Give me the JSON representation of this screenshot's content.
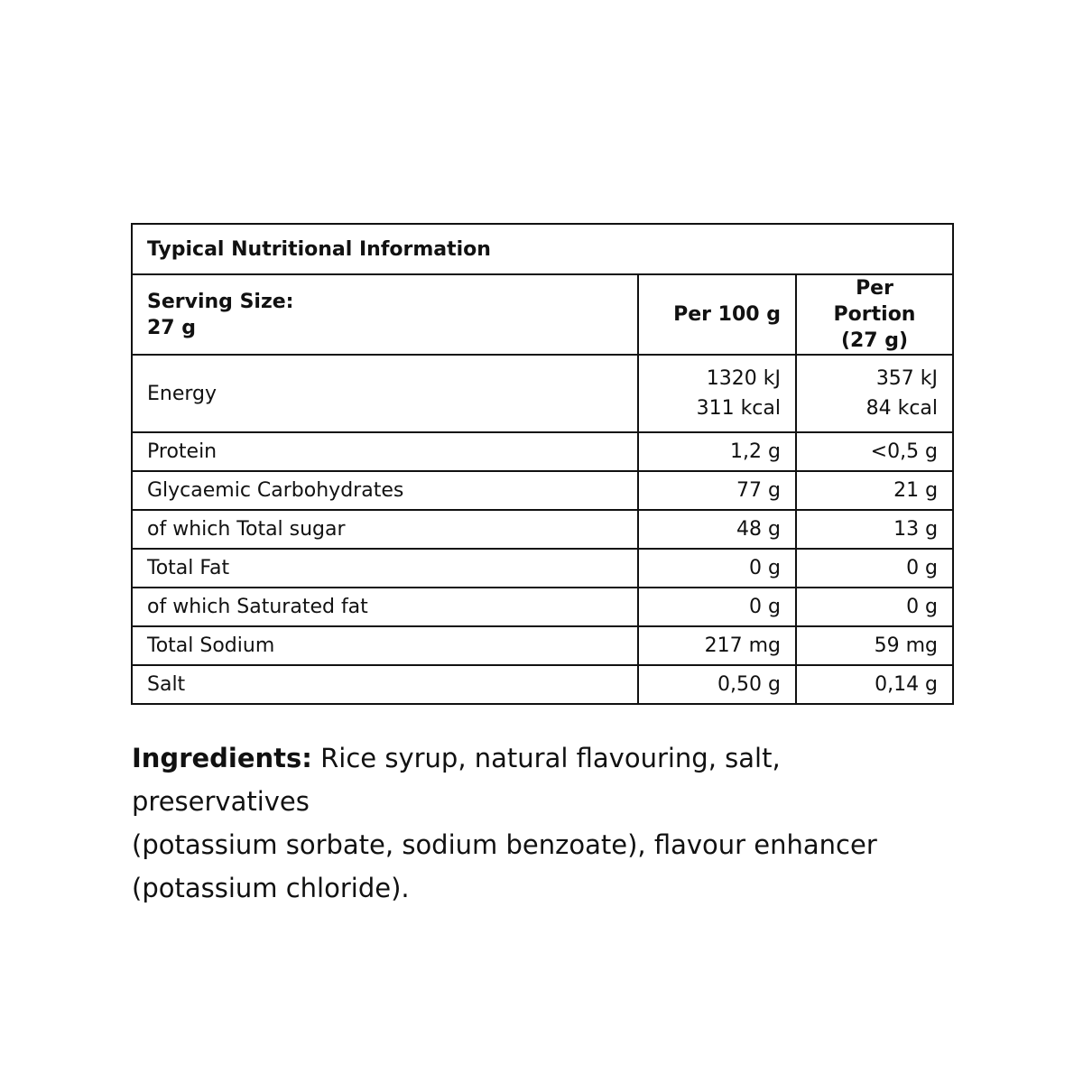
{
  "title": "Typical Nutritional Information",
  "header": {
    "serving_label": "Serving Size:",
    "serving_value": "27 g",
    "col1": "Per 100 g",
    "col2_line1": "Per Portion",
    "col2_line2": "(27 g)"
  },
  "energy": {
    "label": "Energy",
    "per100_kj": "1320 kJ",
    "per100_kcal": "311 kcal",
    "portion_kj": "357 kJ",
    "portion_kcal": "84 kcal"
  },
  "rows": [
    {
      "label": "Protein",
      "per100": "1,2 g",
      "portion": "<0,5 g"
    },
    {
      "label": "Glycaemic Carbohydrates",
      "per100": "77 g",
      "portion": "21 g"
    },
    {
      "label": "of which Total sugar",
      "per100": "48 g",
      "portion": "13 g"
    },
    {
      "label": "Total Fat",
      "per100": "0 g",
      "portion": "0 g"
    },
    {
      "label": "of which Saturated fat",
      "per100": "0 g",
      "portion": "0 g"
    },
    {
      "label": "Total Sodium",
      "per100": "217 mg",
      "portion": "59 mg"
    },
    {
      "label": "Salt",
      "per100": "0,50 g",
      "portion": "0,14 g"
    }
  ],
  "ingredients": {
    "label": "Ingredients:",
    "line1": " Rice syrup, natural flavouring, salt, preservatives",
    "line2": "(potassium sorbate, sodium benzoate), flavour enhancer",
    "line3": "(potassium chloride)."
  }
}
